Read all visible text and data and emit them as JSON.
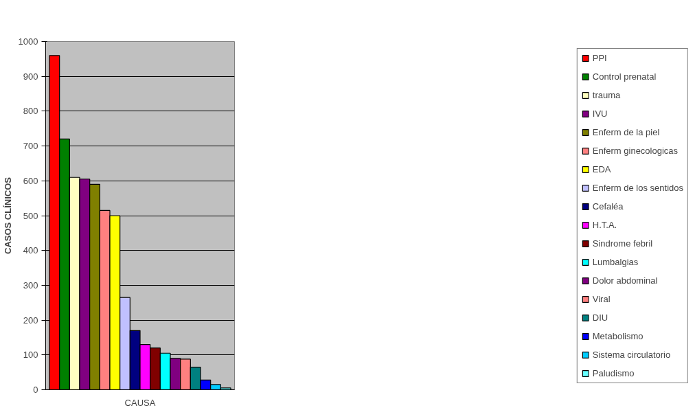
{
  "chart_data": {
    "type": "bar",
    "ylabel": "CASOS CLÍNICOS",
    "categories": [
      "CAUSA"
    ],
    "series": [
      {
        "name": "PPI",
        "color": "#ff0000",
        "values": [
          960
        ]
      },
      {
        "name": "Control prenatal",
        "color": "#008000",
        "values": [
          720
        ]
      },
      {
        "name": "trauma",
        "color": "#ffffc0",
        "values": [
          610
        ]
      },
      {
        "name": "IVU",
        "color": "#800080",
        "values": [
          605
        ]
      },
      {
        "name": "Enferm de la piel",
        "color": "#808000",
        "values": [
          590
        ]
      },
      {
        "name": "Enferm ginecologicas",
        "color": "#ff8080",
        "values": [
          515
        ]
      },
      {
        "name": "EDA",
        "color": "#ffff00",
        "values": [
          500
        ]
      },
      {
        "name": "Enferm de los sentidos",
        "color": "#c0c0ff",
        "values": [
          265
        ]
      },
      {
        "name": "Cefaléa",
        "color": "#000080",
        "values": [
          170
        ]
      },
      {
        "name": "H.T.A.",
        "color": "#ff00ff",
        "values": [
          130
        ]
      },
      {
        "name": "Sindrome febril",
        "color": "#800000",
        "values": [
          120
        ]
      },
      {
        "name": "Lumbalgias",
        "color": "#00ffff",
        "values": [
          105
        ]
      },
      {
        "name": "Dolor abdominal",
        "color": "#800080",
        "values": [
          90
        ]
      },
      {
        "name": "Viral",
        "color": "#ff8080",
        "values": [
          88
        ]
      },
      {
        "name": "DIU",
        "color": "#008080",
        "values": [
          65
        ]
      },
      {
        "name": "Metabolismo",
        "color": "#0000ff",
        "values": [
          28
        ]
      },
      {
        "name": "Sistema circulatorio",
        "color": "#00ccff",
        "values": [
          15
        ]
      },
      {
        "name": "Paludismo",
        "color": "#66ffff",
        "values": [
          5
        ]
      }
    ],
    "ylim": [
      0,
      1000
    ],
    "yticks": [
      0,
      100,
      200,
      300,
      400,
      500,
      600,
      700,
      800,
      900,
      1000
    ],
    "grid": "y",
    "legend": "right"
  }
}
